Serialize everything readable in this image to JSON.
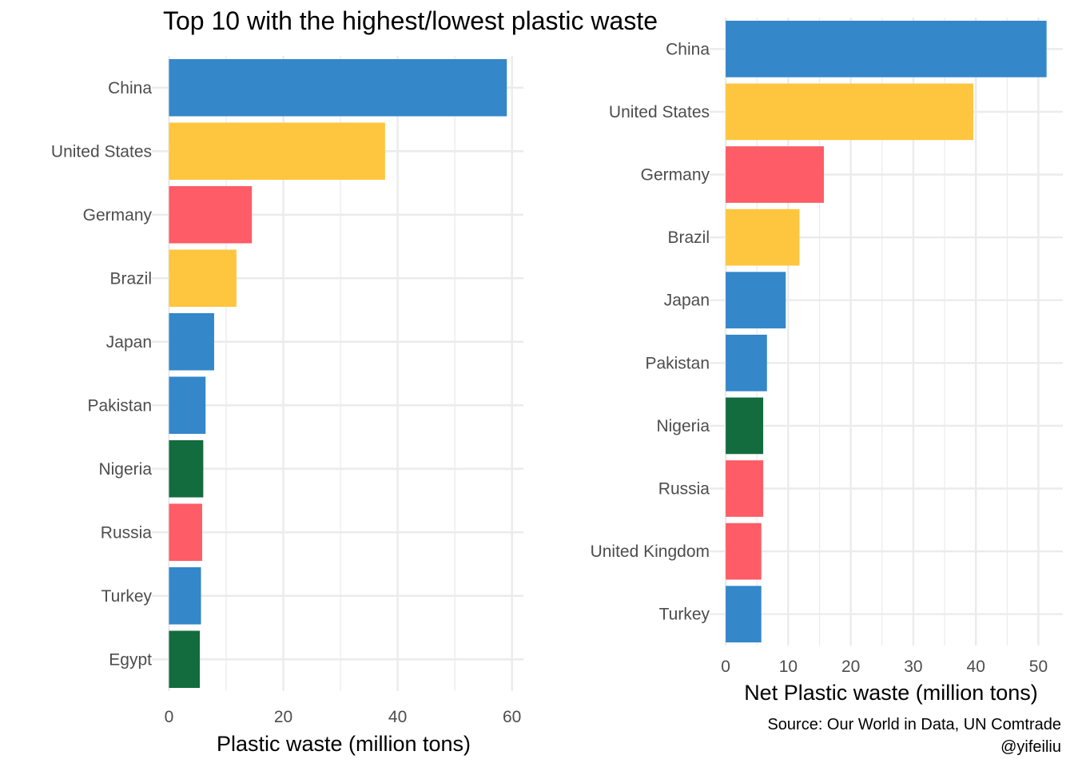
{
  "title": "Top 10 with the highest/lowest plastic waste",
  "caption": {
    "source": "Source: Our World in Data, UN Comtrade",
    "author": "@yifeiliu"
  },
  "colors": {
    "blue": "#3487C9",
    "yellow": "#FEC63F",
    "red": "#FE5C66",
    "green": "#136C3E",
    "grid": "#EBEBEB",
    "tick_text": "#4D4D4D"
  },
  "chart_data": [
    {
      "type": "bar",
      "orientation": "horizontal",
      "categories": [
        "China",
        "United States",
        "Germany",
        "Brazil",
        "Japan",
        "Pakistan",
        "Nigeria",
        "Russia",
        "Turkey",
        "Egypt"
      ],
      "values": [
        59.1,
        37.8,
        14.5,
        11.8,
        7.9,
        6.4,
        6.0,
        5.8,
        5.6,
        5.4
      ],
      "bar_colors": [
        "blue",
        "yellow",
        "red",
        "yellow",
        "blue",
        "blue",
        "green",
        "red",
        "blue",
        "green"
      ],
      "title": "",
      "xlabel": "Plastic waste (million tons)",
      "ylabel": "",
      "xlim": [
        -3.0,
        62.0
      ],
      "xticks": [
        0,
        20,
        40,
        60
      ],
      "grid": true,
      "legend": "none"
    },
    {
      "type": "bar",
      "orientation": "horizontal",
      "categories": [
        "China",
        "United States",
        "Germany",
        "Brazil",
        "Japan",
        "Pakistan",
        "Nigeria",
        "Russia",
        "United Kingdom",
        "Turkey"
      ],
      "values": [
        51.3,
        39.6,
        15.7,
        11.8,
        9.6,
        6.6,
        6.0,
        6.0,
        5.7,
        5.7
      ],
      "bar_colors": [
        "blue",
        "yellow",
        "red",
        "yellow",
        "blue",
        "blue",
        "green",
        "red",
        "red",
        "blue"
      ],
      "title": "",
      "xlabel": "Net Plastic waste (million tons)",
      "ylabel": "",
      "xlim": [
        -2.57,
        53.9
      ],
      "xticks": [
        0,
        10,
        20,
        30,
        40,
        50
      ],
      "grid": true,
      "legend": "none"
    }
  ]
}
